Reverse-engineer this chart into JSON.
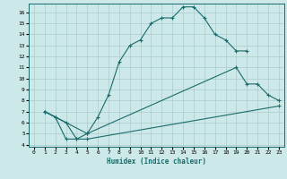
{
  "xlabel": "Humidex (Indice chaleur)",
  "background_color": "#cce8e8",
  "grid_color": "#aacccc",
  "line_color": "#1a6b6b",
  "xlim": [
    -0.5,
    23.5
  ],
  "ylim": [
    3.8,
    16.8
  ],
  "xticks": [
    0,
    1,
    2,
    3,
    4,
    5,
    6,
    7,
    8,
    9,
    10,
    11,
    12,
    13,
    14,
    15,
    16,
    17,
    18,
    19,
    20,
    21,
    22,
    23
  ],
  "yticks": [
    4,
    5,
    6,
    7,
    8,
    9,
    10,
    11,
    12,
    13,
    14,
    15,
    16
  ],
  "line1_x": [
    1,
    2,
    3,
    4,
    5,
    6,
    7,
    8,
    9,
    10,
    11,
    12,
    13,
    14,
    15,
    16,
    17,
    18,
    19,
    20
  ],
  "line1_y": [
    7.0,
    6.5,
    4.5,
    4.5,
    5.0,
    6.5,
    8.5,
    11.5,
    13.0,
    13.5,
    15.0,
    15.5,
    15.5,
    16.5,
    16.5,
    15.5,
    14.0,
    13.5,
    12.5,
    12.5
  ],
  "line2_x": [
    1,
    2,
    5,
    19,
    20,
    21,
    22,
    23
  ],
  "line2_y": [
    7.0,
    6.5,
    5.0,
    11.0,
    9.5,
    9.5,
    8.5,
    8.0
  ],
  "line3_x": [
    1,
    3,
    4,
    5,
    23
  ],
  "line3_y": [
    7.0,
    6.0,
    4.5,
    4.5,
    7.5
  ]
}
